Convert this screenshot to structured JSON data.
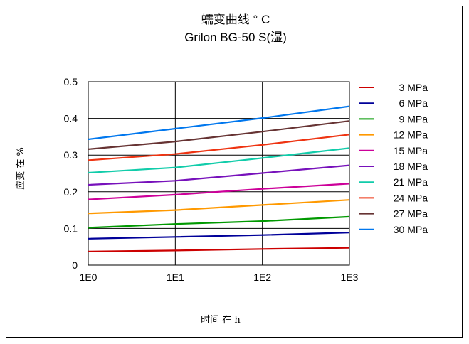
{
  "chart_data": {
    "type": "line",
    "title": "蠕变曲线 ° C",
    "subtitle": "Grilon BG-50 S(湿)",
    "xlabel": "时间 在 h",
    "ylabel": "应变 在 %",
    "x_scale": "log",
    "xlim": [
      1,
      1000
    ],
    "ylim": [
      0,
      0.5
    ],
    "x_ticks": [
      "1E0",
      "1E1",
      "1E2",
      "1E3"
    ],
    "y_ticks": [
      "0",
      "0.1",
      "0.2",
      "0.3",
      "0.4",
      "0.5"
    ],
    "grid": true,
    "legend_position": "right",
    "x": [
      1,
      10,
      100,
      1000
    ],
    "series": [
      {
        "name": "3 MPa",
        "color": "#cc0000",
        "values": [
          0.037,
          0.04,
          0.044,
          0.047
        ]
      },
      {
        "name": "6 MPa",
        "color": "#000099",
        "values": [
          0.072,
          0.077,
          0.082,
          0.089
        ]
      },
      {
        "name": "9 MPa",
        "color": "#009900",
        "values": [
          0.102,
          0.112,
          0.12,
          0.132
        ]
      },
      {
        "name": "12 MPa",
        "color": "#ff9900",
        "values": [
          0.141,
          0.15,
          0.164,
          0.178
        ]
      },
      {
        "name": "15 MPa",
        "color": "#cc0099",
        "values": [
          0.179,
          0.192,
          0.208,
          0.222
        ]
      },
      {
        "name": "18 MPa",
        "color": "#7711bb",
        "values": [
          0.219,
          0.23,
          0.251,
          0.272
        ]
      },
      {
        "name": "21 MPa",
        "color": "#11ccaa",
        "values": [
          0.252,
          0.266,
          0.292,
          0.319
        ]
      },
      {
        "name": "24 MPa",
        "color": "#ee3311",
        "values": [
          0.286,
          0.303,
          0.328,
          0.356
        ]
      },
      {
        "name": "27 MPa",
        "color": "#663333",
        "values": [
          0.316,
          0.337,
          0.364,
          0.393
        ]
      },
      {
        "name": "30 MPa",
        "color": "#0077ee",
        "values": [
          0.343,
          0.372,
          0.401,
          0.433
        ]
      }
    ]
  }
}
